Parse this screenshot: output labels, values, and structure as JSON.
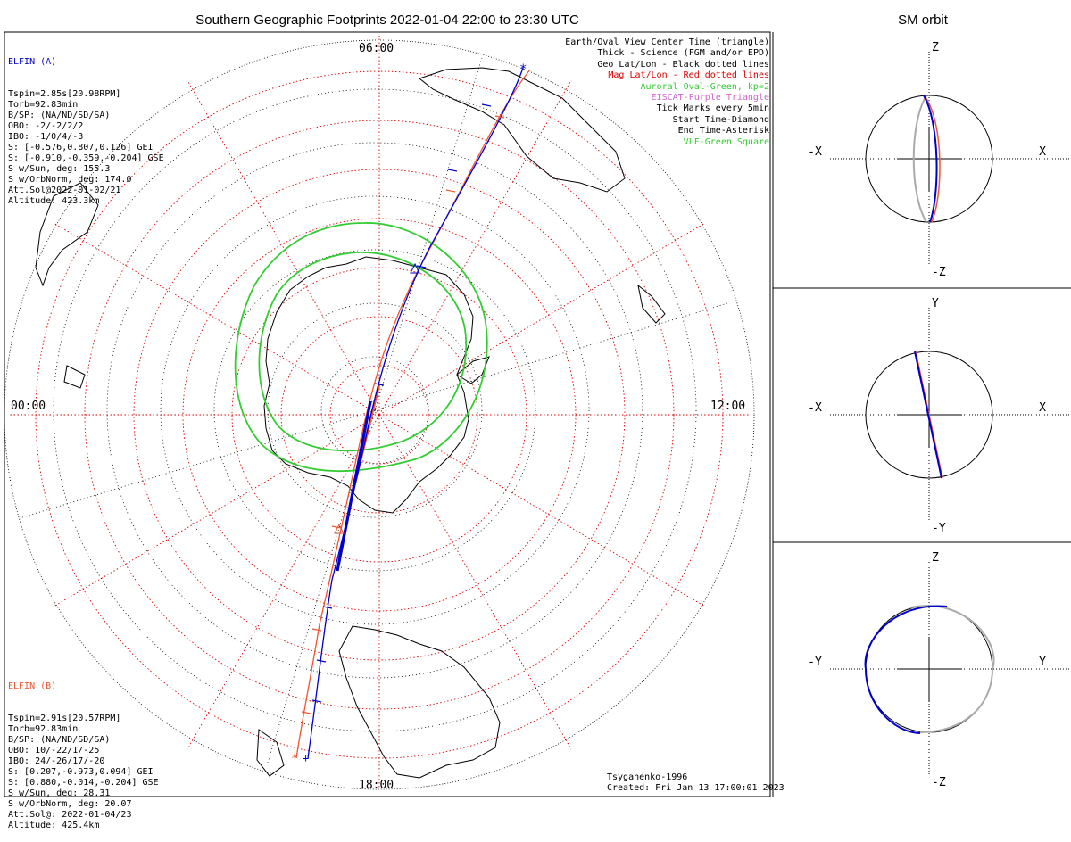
{
  "title": "Southern Geographic Footprints 2022-01-04 22:00 to 23:30 UTC",
  "sm_title": "SM orbit",
  "time_labels": {
    "top": "06:00",
    "left": "00:00",
    "right": "12:00",
    "bottom": "18:00"
  },
  "elfin_a": {
    "name": "ELFIN (A)",
    "color": "#0000cc",
    "lines": [
      "Tspin=2.85s[20.98RPM]",
      "Torb=92.83min",
      "B/SP: (NA/ND/SD/SA)",
      "OBO: -2/-2/2/2",
      "IBO: -1/0/4/-3",
      "S: [-0.576,0.807,0.126] GEI",
      "S: [-0.910,-0.359,-0.204] GSE",
      "S w/Sun, deg: 155.3",
      "S w/OrbNorm, deg: 174.0",
      "Att.Sol@2022-01-02/21",
      "Altitude: 423.3km"
    ]
  },
  "elfin_b": {
    "name": "ELFIN (B)",
    "color": "#ee5533",
    "lines": [
      "Tspin=2.91s[20.57RPM]",
      "Torb=92.83min",
      "B/SP: (NA/ND/SD/SA)",
      "OBO: 10/-22/1/-25",
      "IBO: 24/-26/17/-20",
      "S: [0.207,-0.973,0.094] GEI",
      "S: [0.880,-0.014,-0.204] GSE",
      "S w/Sun, deg: 28.31",
      "S w/OrbNorm, deg: 20.07",
      "Att.Sol@: 2022-01-04/23",
      "Altitude: 425.4km"
    ]
  },
  "legend": [
    {
      "text": "Earth/Oval View Center Time (triangle)",
      "color": "#000000"
    },
    {
      "text": "Thick - Science (FGM and/or EPD)",
      "color": "#000000"
    },
    {
      "text": "Geo Lat/Lon - Black dotted lines",
      "color": "#000000"
    },
    {
      "text": "Mag Lat/Lon - Red dotted lines",
      "color": "#dd0000"
    },
    {
      "text": "Auroral Oval-Green, kp=2",
      "color": "#33cc33"
    },
    {
      "text": "EISCAT-Purple Triangle",
      "color": "#cc66cc"
    },
    {
      "text": "Tick Marks every 5min",
      "color": "#000000"
    },
    {
      "text": "Start Time-Diamond",
      "color": "#000000"
    },
    {
      "text": "End Time-Asterisk",
      "color": "#000000"
    },
    {
      "text": "VLF-Green Square",
      "color": "#33cc33"
    }
  ],
  "footer": {
    "model": "Tsyganenko-1996",
    "created": "Created: Fri Jan 13 17:00:01 2023"
  },
  "sm_panels": [
    {
      "left": "-X",
      "right": "X",
      "top": "Z",
      "bottom": "-Z"
    },
    {
      "left": "-X",
      "right": "X",
      "top": "Y",
      "bottom": "-Y"
    },
    {
      "left": "-Y",
      "right": "Y",
      "top": "Z",
      "bottom": "-Z"
    }
  ],
  "colors": {
    "elfin_a": "#0000cc",
    "elfin_b": "#ee5533",
    "oval": "#33cc33",
    "mag_grid": "#dd0000",
    "geo_grid": "#000000"
  }
}
